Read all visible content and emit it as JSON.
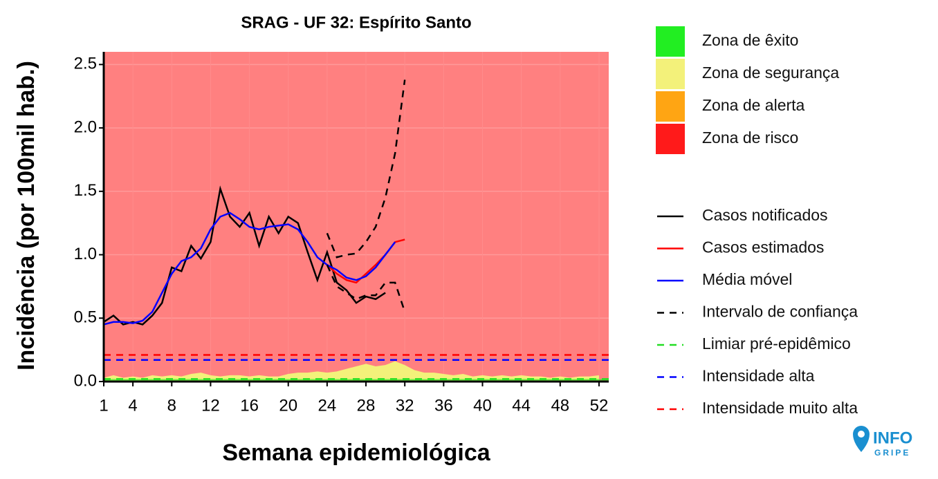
{
  "chart_data": {
    "type": "line",
    "title": "SRAG - UF 32: Espírito Santo",
    "x_label": "Semana epidemiológica",
    "y_label": "Incidência (por 100mil hab.)",
    "xlim": [
      1,
      53
    ],
    "xticks": [
      1,
      4,
      8,
      12,
      16,
      20,
      24,
      28,
      32,
      36,
      40,
      44,
      48,
      52
    ],
    "ylim": [
      0,
      2.6
    ],
    "yticks": [
      {
        "value": 0,
        "label": "0.0"
      },
      0.5,
      {
        "value": 1,
        "label": "1.0"
      },
      1.5,
      {
        "value": 2,
        "label": "2.0"
      },
      2.5
    ],
    "grid": true,
    "x": [
      1,
      2,
      3,
      4,
      5,
      6,
      7,
      8,
      9,
      10,
      11,
      12,
      13,
      14,
      15,
      16,
      17,
      18,
      19,
      20,
      21,
      22,
      23,
      24,
      25,
      26,
      27,
      28,
      29,
      30,
      31,
      32,
      33,
      34,
      35,
      36,
      37,
      38,
      39,
      40,
      41,
      42,
      43,
      44,
      45,
      46,
      47,
      48,
      49,
      50,
      51,
      52
    ],
    "zones": [
      {
        "name": "Zona de êxito",
        "color": "#22ee22"
      },
      {
        "name": "Zona de segurança",
        "color": "#f3f17a",
        "values": [
          0.03,
          0.05,
          0.03,
          0.04,
          0.03,
          0.05,
          0.04,
          0.05,
          0.04,
          0.06,
          0.07,
          0.05,
          0.04,
          0.05,
          0.05,
          0.04,
          0.05,
          0.04,
          0.04,
          0.06,
          0.07,
          0.07,
          0.08,
          0.07,
          0.08,
          0.1,
          0.12,
          0.14,
          0.12,
          0.13,
          0.16,
          0.13,
          0.09,
          0.07,
          0.07,
          0.06,
          0.05,
          0.06,
          0.04,
          0.05,
          0.04,
          0.05,
          0.04,
          0.05,
          0.04,
          0.04,
          0.03,
          0.04,
          0.03,
          0.04,
          0.04,
          0.05
        ]
      },
      {
        "name": "Zona de alerta",
        "color": "#ffa513"
      },
      {
        "name": "Zona de risco",
        "color": "#ff1a1a",
        "background": "#ff8080"
      }
    ],
    "series": [
      {
        "name": "Casos notificados",
        "kind": "line",
        "color": "#000000",
        "dash": false,
        "x": [
          1,
          2,
          3,
          4,
          5,
          6,
          7,
          8,
          9,
          10,
          11,
          12,
          13,
          14,
          15,
          16,
          17,
          18,
          19,
          20,
          21,
          22,
          23,
          24,
          25,
          26,
          27,
          28,
          29,
          30
        ],
        "values": [
          0.47,
          0.52,
          0.45,
          0.47,
          0.45,
          0.52,
          0.62,
          0.9,
          0.87,
          1.07,
          0.97,
          1.1,
          1.52,
          1.3,
          1.22,
          1.33,
          1.07,
          1.3,
          1.17,
          1.3,
          1.25,
          1.02,
          0.8,
          1.02,
          0.78,
          0.72,
          0.62,
          0.67,
          0.65,
          0.7
        ]
      },
      {
        "name": "Casos estimados",
        "kind": "line",
        "color": "#ff0000",
        "dash": false,
        "x": [
          24,
          25,
          26,
          27,
          28,
          29,
          30,
          31,
          32
        ],
        "values": [
          0.92,
          0.85,
          0.8,
          0.78,
          0.85,
          0.92,
          1.0,
          1.1,
          1.12
        ]
      },
      {
        "name": "Média móvel",
        "kind": "line",
        "color": "#0000ff",
        "dash": false,
        "x": [
          1,
          2,
          3,
          4,
          5,
          6,
          7,
          8,
          9,
          10,
          11,
          12,
          13,
          14,
          15,
          16,
          17,
          18,
          19,
          20,
          21,
          22,
          23,
          24,
          25,
          26,
          27,
          28,
          29,
          30,
          31
        ],
        "values": [
          0.45,
          0.47,
          0.47,
          0.46,
          0.48,
          0.55,
          0.7,
          0.85,
          0.95,
          0.98,
          1.05,
          1.2,
          1.3,
          1.33,
          1.28,
          1.22,
          1.2,
          1.22,
          1.23,
          1.24,
          1.2,
          1.1,
          0.98,
          0.92,
          0.88,
          0.82,
          0.8,
          0.83,
          0.9,
          1.0,
          1.1
        ]
      },
      {
        "name": "Intervalo de confiança",
        "kind": "band",
        "color": "#000000",
        "dash": true,
        "x": [
          24,
          25,
          26,
          27,
          28,
          29,
          30,
          31,
          32
        ],
        "upper": [
          1.17,
          0.98,
          1.0,
          1.01,
          1.1,
          1.22,
          1.45,
          1.8,
          2.38
        ],
        "lower": [
          0.92,
          0.75,
          0.7,
          0.65,
          0.68,
          0.68,
          0.78,
          0.78,
          0.55
        ]
      },
      {
        "name": "Limiar pré-epidêmico",
        "kind": "hline",
        "color": "#22dd22",
        "dash": true,
        "value": 0.02
      },
      {
        "name": "Intensidade alta",
        "kind": "hline",
        "color": "#0000ff",
        "dash": true,
        "value": 0.17
      },
      {
        "name": "Intensidade muito alta",
        "kind": "hline",
        "color": "#ff0000",
        "dash": true,
        "value": 0.21
      }
    ]
  },
  "logo": {
    "line1": "INFO",
    "line2": "GRIPE"
  }
}
